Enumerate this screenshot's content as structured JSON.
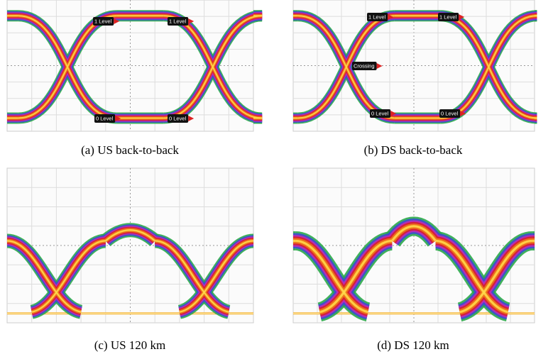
{
  "panels": [
    {
      "caption": "(a) US back-to-back",
      "markers": [
        "1 Level",
        "1 Level",
        "0 Level",
        "0 Level"
      ]
    },
    {
      "caption": "(b) DS back-to-back",
      "markers": [
        "1 Level",
        "1 Level",
        "Crossing",
        "0 Level",
        "0 Level"
      ]
    },
    {
      "caption": "(c) US 120 km"
    },
    {
      "caption": "(d) DS 120 km"
    }
  ]
}
